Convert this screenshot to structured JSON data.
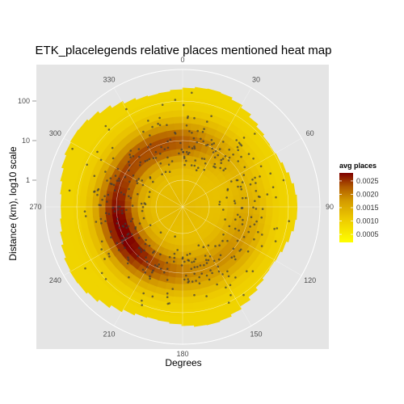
{
  "chart_data": {
    "type": "heatmap",
    "subtype": "polar",
    "title": "ETK_placelegends relative places mentioned heat map",
    "xlabel": "Degrees",
    "ylabel": "Distance (km), log10 scale",
    "angle_ticks": [
      "0",
      "30",
      "60",
      "90",
      "120",
      "150",
      "180",
      "210",
      "240",
      "270",
      "300",
      "330"
    ],
    "angle_tick_values": [
      0,
      30,
      60,
      90,
      120,
      150,
      180,
      210,
      240,
      270,
      300,
      330
    ],
    "radial_ticks": [
      "1",
      "10",
      "100"
    ],
    "radial_tick_values": [
      1,
      10,
      100
    ],
    "legend": {
      "title": "avg places",
      "position": "right",
      "labels": [
        "0.0025",
        "0.0020",
        "0.0015",
        "0.0010",
        "0.0005"
      ],
      "values": [
        0.0025,
        0.002,
        0.0015,
        0.001,
        0.0005
      ],
      "range": [
        0.0002,
        0.0028
      ]
    },
    "colors": {
      "low": "#ffff00",
      "mid": "#d9a400",
      "high": "#7f0000",
      "panel_background": "#e5e5e5",
      "grid": "#ffffff",
      "points": "#4d4d4d"
    },
    "density_ring": {
      "peak_log10_distance": 1.0,
      "peak_value": 0.0027,
      "max_value_angle_range": [
        240,
        300
      ]
    },
    "grid": true
  }
}
